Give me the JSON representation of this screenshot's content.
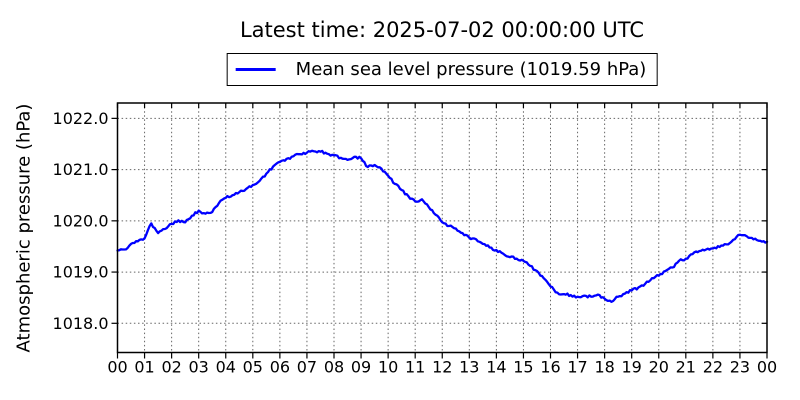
{
  "title": "Latest time: 2025-07-02 00:00:00 UTC",
  "legend": {
    "label": "Mean sea level pressure (1019.59 hPa)",
    "line_color": "#0000ff"
  },
  "colors": {
    "line": "#0000ff",
    "grid": "#666666",
    "frame": "#000000",
    "background": "#ffffff",
    "text": "#000000"
  },
  "chart_data": {
    "type": "line",
    "title": "Latest time: 2025-07-02 00:00:00 UTC",
    "xlabel": "",
    "ylabel": "Atmospheric pressure (hPa)",
    "latest_time": "2025-07-02 00:00:00 UTC",
    "latest_value_hpa": 1019.59,
    "grid": true,
    "grid_style": "dotted",
    "legend_position": "upper center, above axes",
    "xlim": [
      0,
      24
    ],
    "ylim": [
      1017.43,
      1022.3
    ],
    "xtick_hours": [
      0,
      1,
      2,
      3,
      4,
      5,
      6,
      7,
      8,
      9,
      10,
      11,
      12,
      13,
      14,
      15,
      16,
      17,
      18,
      19,
      20,
      21,
      22,
      23,
      24
    ],
    "xtick_labels": [
      "00",
      "01",
      "02",
      "03",
      "04",
      "05",
      "06",
      "07",
      "08",
      "09",
      "10",
      "11",
      "12",
      "13",
      "14",
      "15",
      "16",
      "17",
      "18",
      "19",
      "20",
      "21",
      "22",
      "23",
      "00"
    ],
    "yticks": [
      1018.0,
      1019.0,
      1020.0,
      1021.0,
      1022.0
    ],
    "ytick_labels": [
      "1018.0",
      "1019.0",
      "1020.0",
      "1021.0",
      "1022.0"
    ],
    "series": [
      {
        "name": "Mean sea level pressure (1019.59 hPa)",
        "color": "#0000ff",
        "x": [
          0,
          0.25,
          0.5,
          0.75,
          1,
          1.25,
          1.5,
          1.75,
          2,
          2.25,
          2.5,
          2.75,
          3,
          3.25,
          3.5,
          3.75,
          4,
          4.25,
          4.5,
          4.75,
          5,
          5.25,
          5.5,
          5.75,
          6,
          6.25,
          6.5,
          6.75,
          7,
          7.25,
          7.5,
          7.75,
          8,
          8.25,
          8.5,
          8.75,
          9,
          9.25,
          9.5,
          9.75,
          10,
          10.25,
          10.5,
          10.75,
          11,
          11.25,
          11.5,
          11.75,
          12,
          12.25,
          12.5,
          12.75,
          13,
          13.25,
          13.5,
          13.75,
          14,
          14.25,
          14.5,
          14.75,
          15,
          15.25,
          15.5,
          15.75,
          16,
          16.25,
          16.5,
          16.75,
          17,
          17.25,
          17.5,
          17.75,
          18,
          18.25,
          18.5,
          18.75,
          19,
          19.25,
          19.5,
          19.75,
          20,
          20.25,
          20.5,
          20.75,
          21,
          21.25,
          21.5,
          21.75,
          22,
          22.25,
          22.5,
          22.75,
          23,
          23.25,
          23.5,
          23.75,
          24
        ],
        "y": [
          1019.42,
          1019.44,
          1019.55,
          1019.6,
          1019.66,
          1019.95,
          1019.76,
          1019.84,
          1019.94,
          1020.01,
          1019.97,
          1020.1,
          1020.2,
          1020.14,
          1020.17,
          1020.35,
          1020.45,
          1020.5,
          1020.56,
          1020.62,
          1020.7,
          1020.78,
          1020.92,
          1021.06,
          1021.15,
          1021.21,
          1021.26,
          1021.3,
          1021.33,
          1021.36,
          1021.35,
          1021.31,
          1021.28,
          1021.23,
          1021.19,
          1021.25,
          1021.22,
          1021.05,
          1021.09,
          1021.02,
          1020.88,
          1020.72,
          1020.6,
          1020.48,
          1020.38,
          1020.42,
          1020.27,
          1020.12,
          1019.97,
          1019.9,
          1019.85,
          1019.76,
          1019.67,
          1019.64,
          1019.55,
          1019.48,
          1019.43,
          1019.36,
          1019.29,
          1019.26,
          1019.22,
          1019.12,
          1019.02,
          1018.88,
          1018.72,
          1018.6,
          1018.57,
          1018.55,
          1018.52,
          1018.54,
          1018.52,
          1018.56,
          1018.48,
          1018.42,
          1018.52,
          1018.58,
          1018.64,
          1018.7,
          1018.77,
          1018.88,
          1018.93,
          1019.02,
          1019.09,
          1019.22,
          1019.26,
          1019.35,
          1019.41,
          1019.44,
          1019.46,
          1019.49,
          1019.54,
          1019.63,
          1019.73,
          1019.7,
          1019.64,
          1019.61,
          1019.59
        ]
      }
    ]
  }
}
